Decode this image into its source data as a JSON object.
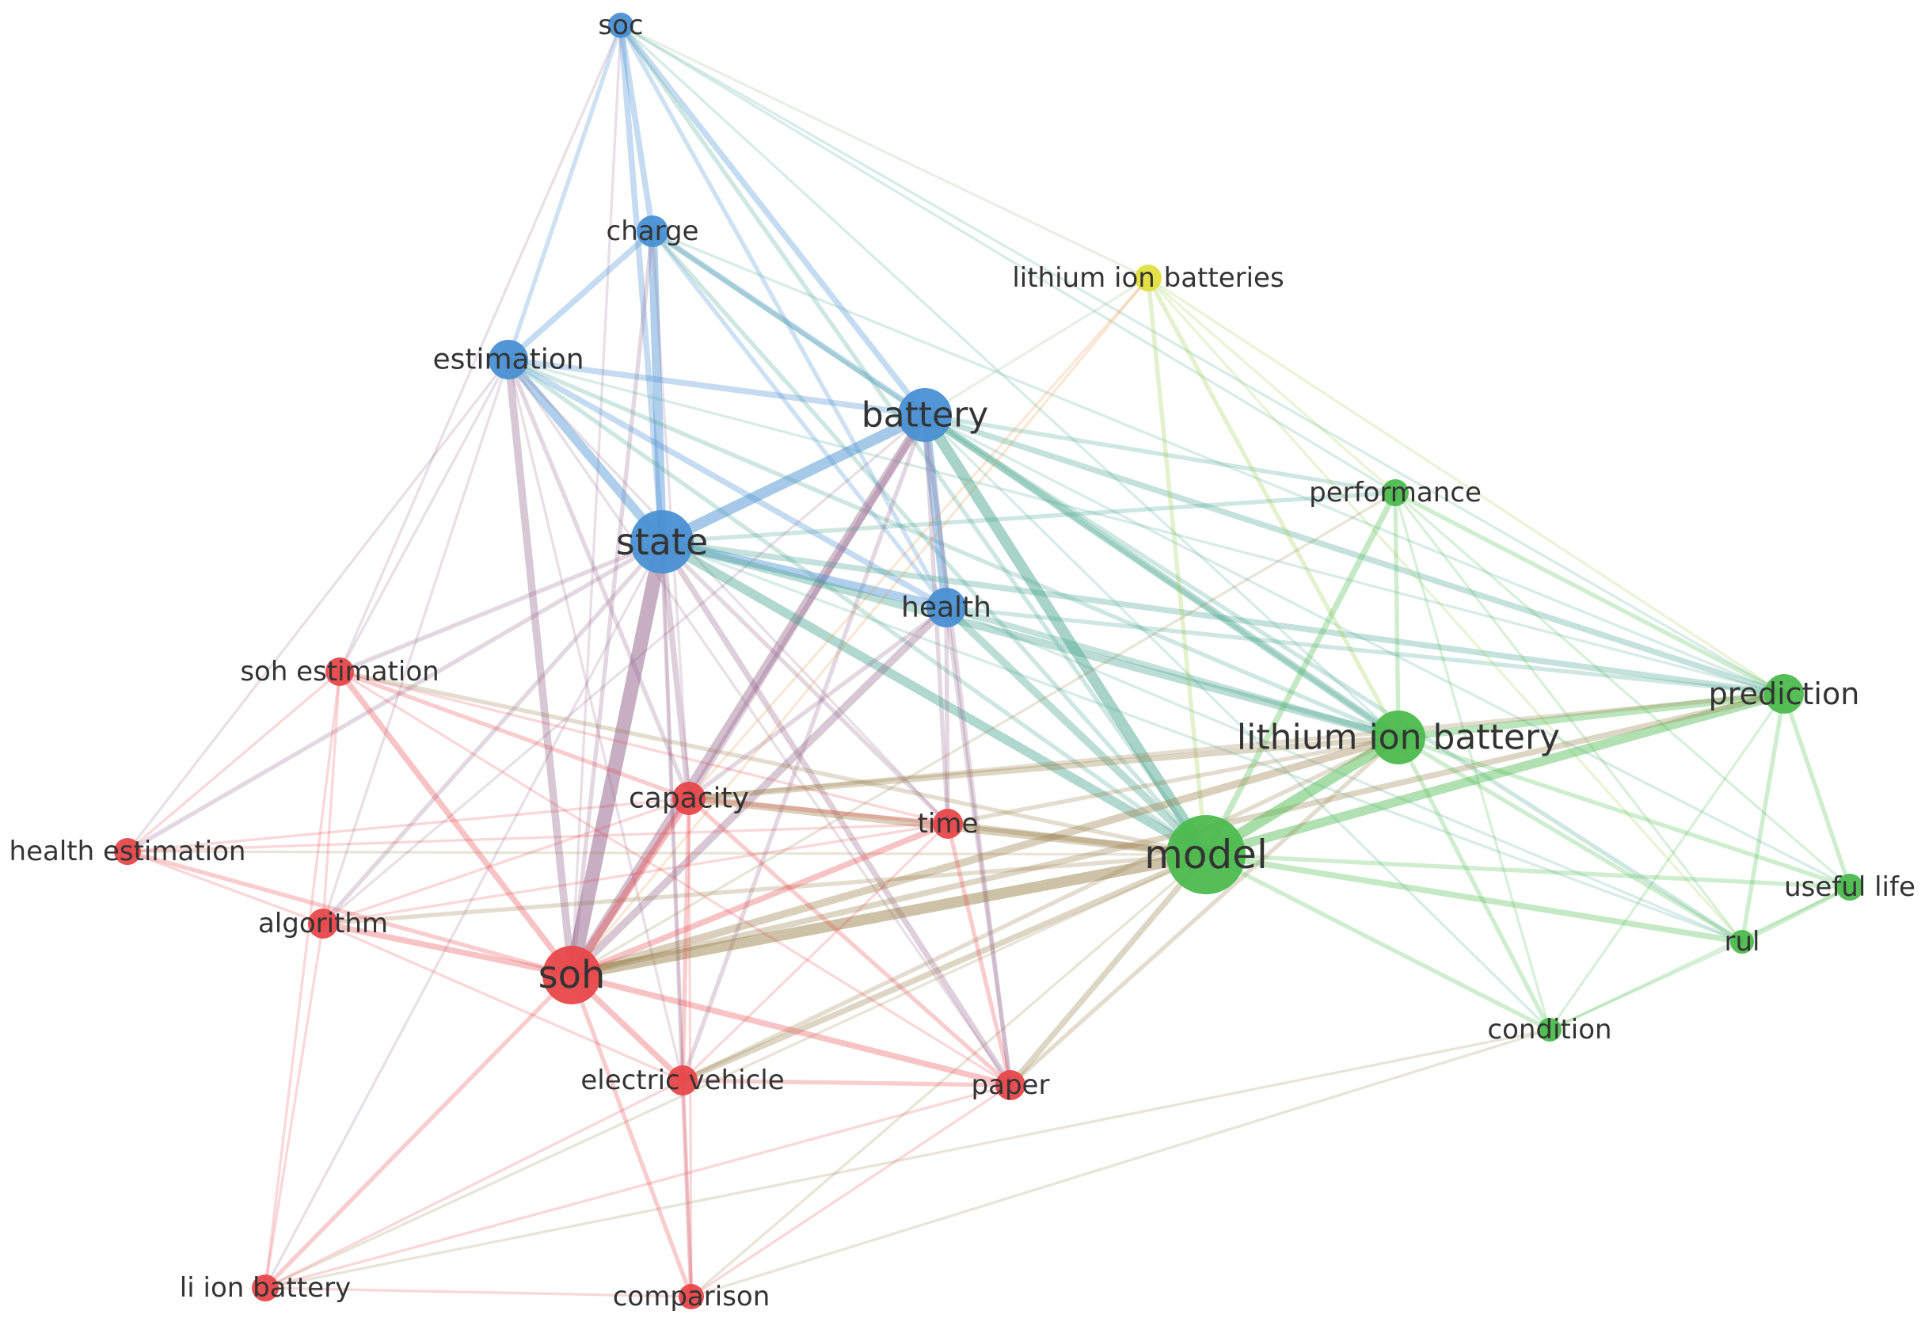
{
  "cluster_colors": {
    "red": "#e8474a",
    "green": "#4cbb4e",
    "blue": "#4a90d3",
    "yellow": "#e2df40"
  },
  "nodes": [
    {
      "id": "soc",
      "label": "soc",
      "cluster": "blue",
      "weight": 2
    },
    {
      "id": "charge",
      "label": "charge",
      "cluster": "blue",
      "weight": 3
    },
    {
      "id": "estimation",
      "label": "estimation",
      "cluster": "blue",
      "weight": 4
    },
    {
      "id": "battery",
      "label": "battery",
      "cluster": "blue",
      "weight": 6
    },
    {
      "id": "state",
      "label": "state",
      "cluster": "blue",
      "weight": 7
    },
    {
      "id": "health",
      "label": "health",
      "cluster": "blue",
      "weight": 4
    },
    {
      "id": "lithium-ion-batteries",
      "label": "lithium ion batteries",
      "cluster": "yellow",
      "weight": 2
    },
    {
      "id": "performance",
      "label": "performance",
      "cluster": "green",
      "weight": 2
    },
    {
      "id": "prediction",
      "label": "prediction",
      "cluster": "green",
      "weight": 4
    },
    {
      "id": "lithium-ion-battery",
      "label": "lithium ion battery",
      "cluster": "green",
      "weight": 6
    },
    {
      "id": "model",
      "label": "model",
      "cluster": "green",
      "weight": 8
    },
    {
      "id": "useful-life",
      "label": "useful life",
      "cluster": "green",
      "weight": 2
    },
    {
      "id": "rul",
      "label": "rul",
      "cluster": "green",
      "weight": 2
    },
    {
      "id": "condition",
      "label": "condition",
      "cluster": "green",
      "weight": 2
    },
    {
      "id": "soh-estimation",
      "label": "soh estimation",
      "cluster": "red",
      "weight": 2
    },
    {
      "id": "health-estimation",
      "label": "health estimation",
      "cluster": "red",
      "weight": 2
    },
    {
      "id": "capacity",
      "label": "capacity",
      "cluster": "red",
      "weight": 3
    },
    {
      "id": "time",
      "label": "time",
      "cluster": "red",
      "weight": 3
    },
    {
      "id": "algorithm",
      "label": "algorithm",
      "cluster": "red",
      "weight": 3
    },
    {
      "id": "soh",
      "label": "soh",
      "cluster": "red",
      "weight": 7
    },
    {
      "id": "electric-vehicle",
      "label": "electric vehicle",
      "cluster": "red",
      "weight": 3
    },
    {
      "id": "paper",
      "label": "paper",
      "cluster": "red",
      "weight": 3
    },
    {
      "id": "li-ion-battery",
      "label": "li ion battery",
      "cluster": "red",
      "weight": 2
    },
    {
      "id": "comparison",
      "label": "comparison",
      "cluster": "red",
      "weight": 2
    }
  ],
  "edges": [
    [
      "soc",
      "charge",
      3
    ],
    [
      "soc",
      "estimation",
      2
    ],
    [
      "soc",
      "battery",
      3
    ],
    [
      "soc",
      "state",
      3
    ],
    [
      "soc",
      "health",
      2
    ],
    [
      "soc",
      "lithium-ion-battery",
      1
    ],
    [
      "soc",
      "model",
      2
    ],
    [
      "soc",
      "soh",
      1
    ],
    [
      "soc",
      "prediction",
      1
    ],
    [
      "soc",
      "lithium-ion-batteries",
      1
    ],
    [
      "soc",
      "performance",
      1
    ],
    [
      "soc",
      "soh-estimation",
      1
    ],
    [
      "charge",
      "estimation",
      3
    ],
    [
      "charge",
      "battery",
      3
    ],
    [
      "charge",
      "state",
      5
    ],
    [
      "charge",
      "health",
      2
    ],
    [
      "charge",
      "model",
      2
    ],
    [
      "charge",
      "soh",
      2
    ],
    [
      "charge",
      "lithium-ion-battery",
      2
    ],
    [
      "charge",
      "capacity",
      1
    ],
    [
      "charge",
      "prediction",
      1
    ],
    [
      "estimation",
      "battery",
      3
    ],
    [
      "estimation",
      "state",
      5
    ],
    [
      "estimation",
      "health",
      3
    ],
    [
      "estimation",
      "soh",
      4
    ],
    [
      "estimation",
      "model",
      2
    ],
    [
      "estimation",
      "lithium-ion-battery",
      2
    ],
    [
      "estimation",
      "capacity",
      2
    ],
    [
      "estimation",
      "time",
      1
    ],
    [
      "estimation",
      "soh-estimation",
      1
    ],
    [
      "estimation",
      "algorithm",
      1
    ],
    [
      "estimation",
      "health-estimation",
      1
    ],
    [
      "estimation",
      "electric-vehicle",
      1
    ],
    [
      "estimation",
      "paper",
      1
    ],
    [
      "estimation",
      "prediction",
      1
    ],
    [
      "battery",
      "state",
      6
    ],
    [
      "battery",
      "health",
      5
    ],
    [
      "battery",
      "model",
      6
    ],
    [
      "battery",
      "lithium-ion-battery",
      4
    ],
    [
      "battery",
      "soh",
      5
    ],
    [
      "battery",
      "capacity",
      3
    ],
    [
      "battery",
      "time",
      2
    ],
    [
      "battery",
      "prediction",
      3
    ],
    [
      "battery",
      "performance",
      2
    ],
    [
      "battery",
      "paper",
      2
    ],
    [
      "battery",
      "electric-vehicle",
      2
    ],
    [
      "battery",
      "rul",
      2
    ],
    [
      "battery",
      "useful-life",
      1
    ],
    [
      "battery",
      "lithium-ion-batteries",
      1
    ],
    [
      "battery",
      "algorithm",
      1
    ],
    [
      "battery",
      "condition",
      1
    ],
    [
      "state",
      "health",
      5
    ],
    [
      "state",
      "soh",
      8
    ],
    [
      "state",
      "model",
      5
    ],
    [
      "state",
      "lithium-ion-battery",
      4
    ],
    [
      "state",
      "capacity",
      3
    ],
    [
      "state",
      "time",
      2
    ],
    [
      "state",
      "soh-estimation",
      2
    ],
    [
      "state",
      "health-estimation",
      2
    ],
    [
      "state",
      "algorithm",
      2
    ],
    [
      "state",
      "electric-vehicle",
      2
    ],
    [
      "state",
      "paper",
      3
    ],
    [
      "state",
      "prediction",
      3
    ],
    [
      "state",
      "performance",
      2
    ],
    [
      "state",
      "rul",
      1
    ],
    [
      "state",
      "li-ion-battery",
      1
    ],
    [
      "state",
      "comparison",
      1
    ],
    [
      "health",
      "model",
      4
    ],
    [
      "health",
      "lithium-ion-battery",
      3
    ],
    [
      "health",
      "soh",
      4
    ],
    [
      "health",
      "time",
      2
    ],
    [
      "health",
      "capacity",
      2
    ],
    [
      "health",
      "prediction",
      2
    ],
    [
      "health",
      "paper",
      2
    ],
    [
      "health",
      "rul",
      1
    ],
    [
      "lithium-ion-batteries",
      "model",
      2
    ],
    [
      "lithium-ion-batteries",
      "lithium-ion-battery",
      2
    ],
    [
      "lithium-ion-batteries",
      "prediction",
      1
    ],
    [
      "lithium-ion-batteries",
      "performance",
      1
    ],
    [
      "lithium-ion-batteries",
      "soh",
      1
    ],
    [
      "lithium-ion-batteries",
      "rul",
      1
    ],
    [
      "lithium-ion-batteries",
      "capacity",
      1
    ],
    [
      "performance",
      "model",
      3
    ],
    [
      "performance",
      "lithium-ion-battery",
      2
    ],
    [
      "performance",
      "prediction",
      2
    ],
    [
      "performance",
      "rul",
      1
    ],
    [
      "performance",
      "useful-life",
      1
    ],
    [
      "performance",
      "condition",
      1
    ],
    [
      "performance",
      "soh",
      1
    ],
    [
      "prediction",
      "model",
      5
    ],
    [
      "prediction",
      "lithium-ion-battery",
      4
    ],
    [
      "prediction",
      "rul",
      2
    ],
    [
      "prediction",
      "useful-life",
      2
    ],
    [
      "prediction",
      "condition",
      1
    ],
    [
      "prediction",
      "soh",
      3
    ],
    [
      "prediction",
      "capacity",
      2
    ],
    [
      "lithium-ion-battery",
      "model",
      6
    ],
    [
      "lithium-ion-battery",
      "soh",
      4
    ],
    [
      "lithium-ion-battery",
      "rul",
      2
    ],
    [
      "lithium-ion-battery",
      "useful-life",
      2
    ],
    [
      "lithium-ion-battery",
      "condition",
      2
    ],
    [
      "lithium-ion-battery",
      "capacity",
      3
    ],
    [
      "lithium-ion-battery",
      "time",
      2
    ],
    [
      "lithium-ion-battery",
      "paper",
      2
    ],
    [
      "lithium-ion-battery",
      "electric-vehicle",
      2
    ],
    [
      "model",
      "soh",
      6
    ],
    [
      "model",
      "capacity",
      4
    ],
    [
      "model",
      "time",
      3
    ],
    [
      "model",
      "rul",
      3
    ],
    [
      "model",
      "useful-life",
      2
    ],
    [
      "model",
      "condition",
      2
    ],
    [
      "model",
      "paper",
      3
    ],
    [
      "model",
      "electric-vehicle",
      3
    ],
    [
      "model",
      "algorithm",
      2
    ],
    [
      "model",
      "soh-estimation",
      2
    ],
    [
      "model",
      "li-ion-battery",
      1
    ],
    [
      "model",
      "comparison",
      1
    ],
    [
      "model",
      "health-estimation",
      1
    ],
    [
      "rul",
      "useful-life",
      2
    ],
    [
      "rul",
      "condition",
      1
    ],
    [
      "condition",
      "useful-life",
      1
    ],
    [
      "soh",
      "capacity",
      4
    ],
    [
      "soh",
      "time",
      3
    ],
    [
      "soh",
      "soh-estimation",
      3
    ],
    [
      "soh",
      "health-estimation",
      2
    ],
    [
      "soh",
      "algorithm",
      3
    ],
    [
      "soh",
      "electric-vehicle",
      3
    ],
    [
      "soh",
      "paper",
      3
    ],
    [
      "soh",
      "li-ion-battery",
      2
    ],
    [
      "soh",
      "comparison",
      2
    ],
    [
      "soh-estimation",
      "health-estimation",
      1
    ],
    [
      "soh-estimation",
      "algorithm",
      1
    ],
    [
      "soh-estimation",
      "capacity",
      2
    ],
    [
      "soh-estimation",
      "time",
      1
    ],
    [
      "soh-estimation",
      "paper",
      1
    ],
    [
      "soh-estimation",
      "li-ion-battery",
      1
    ],
    [
      "health-estimation",
      "capacity",
      1
    ],
    [
      "health-estimation",
      "algorithm",
      1
    ],
    [
      "health-estimation",
      "time",
      1
    ],
    [
      "capacity",
      "time",
      2
    ],
    [
      "capacity",
      "algorithm",
      1
    ],
    [
      "capacity",
      "electric-vehicle",
      2
    ],
    [
      "capacity",
      "paper",
      2
    ],
    [
      "capacity",
      "comparison",
      1
    ],
    [
      "time",
      "paper",
      2
    ],
    [
      "time",
      "electric-vehicle",
      1
    ],
    [
      "time",
      "algorithm",
      1
    ],
    [
      "algorithm",
      "electric-vehicle",
      1
    ],
    [
      "algorithm",
      "li-ion-battery",
      1
    ],
    [
      "electric-vehicle",
      "paper",
      2
    ],
    [
      "electric-vehicle",
      "comparison",
      2
    ],
    [
      "electric-vehicle",
      "li-ion-battery",
      1
    ],
    [
      "paper",
      "comparison",
      1
    ],
    [
      "paper",
      "li-ion-battery",
      1
    ],
    [
      "li-ion-battery",
      "comparison",
      1
    ],
    [
      "comparison",
      "condition",
      1
    ],
    [
      "li-ion-battery",
      "condition",
      1
    ]
  ]
}
